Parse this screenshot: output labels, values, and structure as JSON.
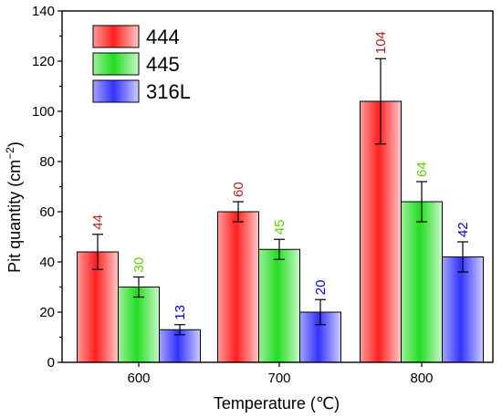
{
  "chart_data": {
    "type": "bar",
    "title": "",
    "xlabel": "Temperature (℃)",
    "ylabel_main": "Pit quantity (cm",
    "ylabel_sup": "−2",
    "ylabel_close": ")",
    "categories": [
      "600",
      "700",
      "800"
    ],
    "ylim": [
      0,
      140
    ],
    "yticks": [
      0,
      20,
      40,
      60,
      80,
      100,
      120,
      140
    ],
    "legend_position": "top-left",
    "series": [
      {
        "name": "444",
        "values": [
          44,
          60,
          104
        ],
        "errors": [
          7,
          4,
          17
        ],
        "color": "#ff2020",
        "label_color": "#b22222",
        "labels": [
          "44",
          "60",
          "104"
        ]
      },
      {
        "name": "445",
        "values": [
          30,
          45,
          64
        ],
        "errors": [
          4,
          4,
          8
        ],
        "color": "#22dd22",
        "label_color": "#66cc00",
        "labels": [
          "30",
          "45",
          "64"
        ]
      },
      {
        "name": "316L",
        "values": [
          13,
          20,
          42
        ],
        "errors": [
          2,
          5,
          6
        ],
        "color": "#3333ff",
        "label_color": "#0000cc",
        "labels": [
          "13",
          "20",
          "42"
        ]
      }
    ]
  }
}
